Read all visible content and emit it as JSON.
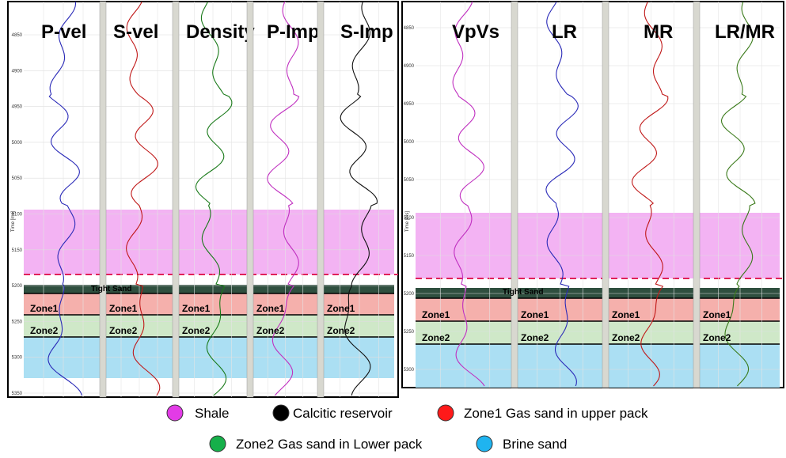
{
  "panels": [
    {
      "tracks": [
        "P-vel",
        "S-vel",
        "Density",
        "P-Imp",
        "S-Imp"
      ],
      "tight_sand": "Tight Sand",
      "zone_labels": [
        "Zone1",
        "Zone2"
      ],
      "axis_label": "Time [ms]",
      "time_ticks": [
        4850,
        4900,
        4950,
        5000,
        5050,
        5100,
        5150,
        5200,
        5250,
        5300,
        5350
      ]
    },
    {
      "tracks": [
        "VpVs",
        "LR",
        "MR",
        "LR/MR"
      ],
      "tight_sand": "Tight Sand",
      "zone_labels": [
        "Zone1",
        "Zone2"
      ],
      "axis_label": "Time [ms]",
      "time_ticks": [
        4850,
        4900,
        4950,
        5000,
        5050,
        5100,
        5150,
        5200,
        5250,
        5300
      ]
    }
  ],
  "legend": [
    {
      "label": "Shale",
      "color": "#e23be6"
    },
    {
      "label": "Calcitic reservoir",
      "color": "#000000"
    },
    {
      "label": "Zone1 Gas sand in upper pack",
      "color": "#ff1a1a"
    },
    {
      "label": "Zone2 Gas sand in Lower pack",
      "color": "#16b04a"
    },
    {
      "label": "Brine sand",
      "color": "#1fb4f0"
    }
  ]
}
